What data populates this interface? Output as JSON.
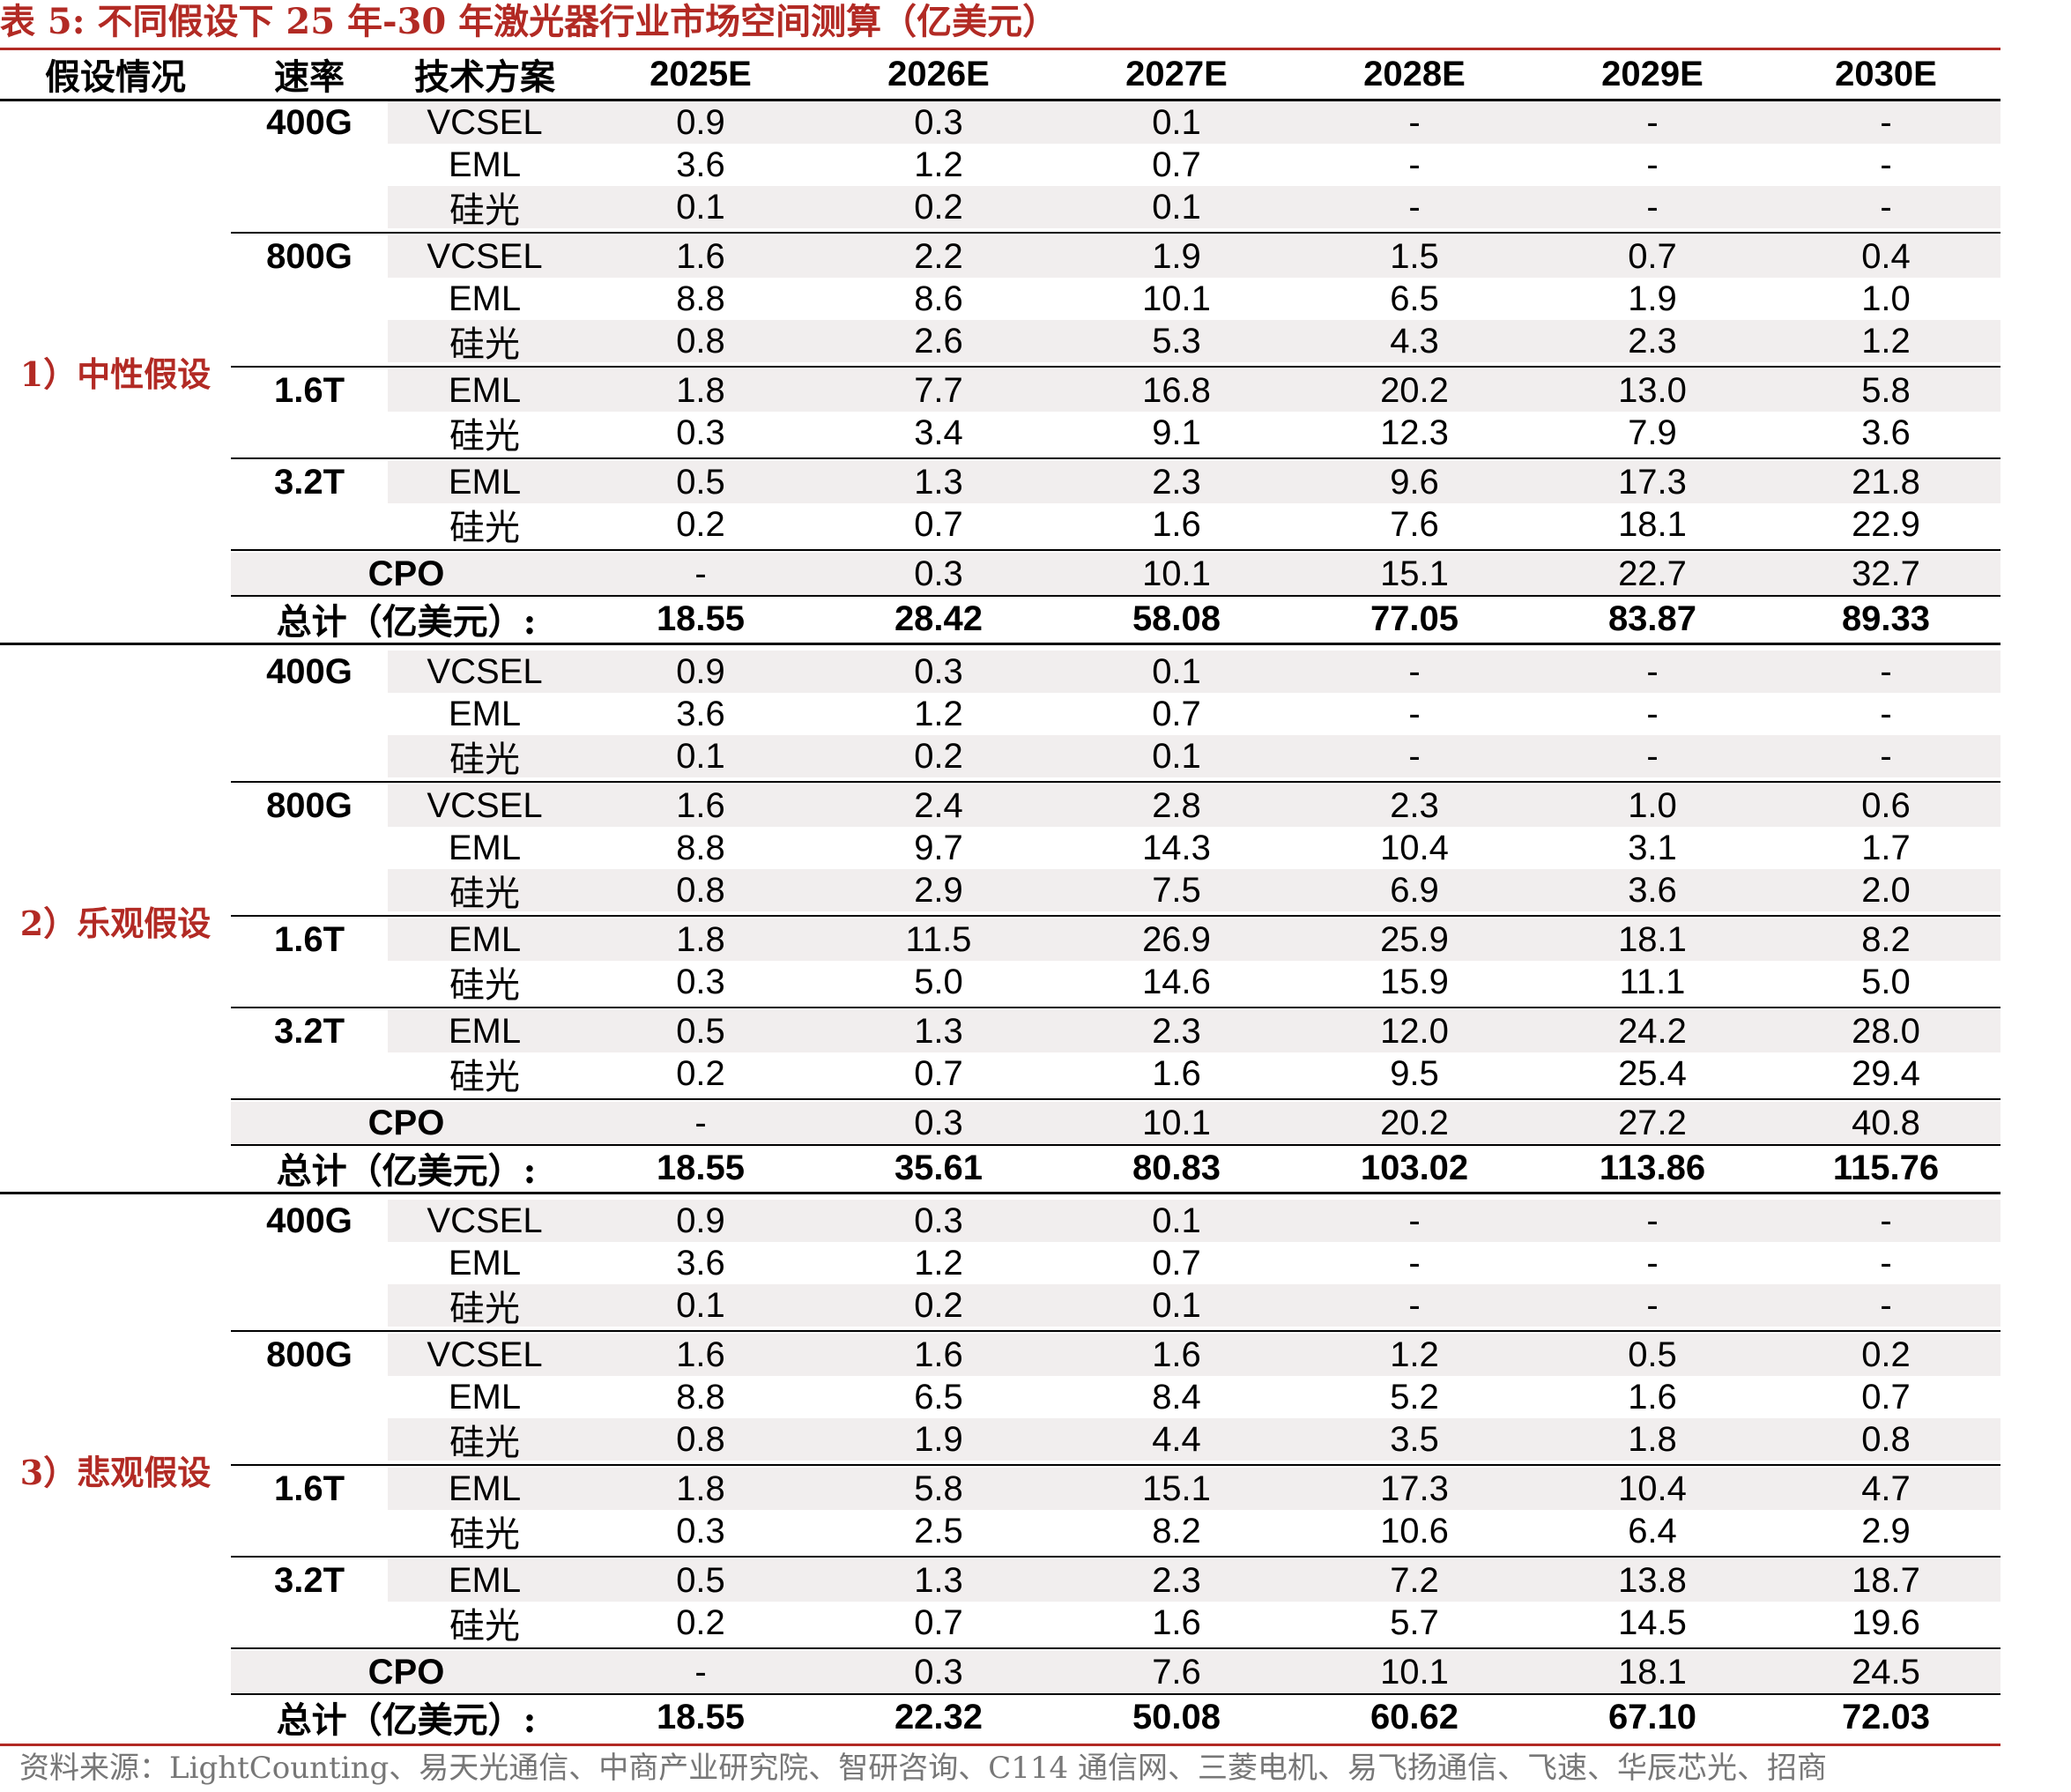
{
  "caption": "表 5:  不同假设下 25 年-30 年激光器行业市场空间测算（亿美元）",
  "headers": [
    "假设情况",
    "速率",
    "技术方案",
    "2025E",
    "2026E",
    "2027E",
    "2028E",
    "2029E",
    "2030E"
  ],
  "total_label": "总计（亿美元）:",
  "scenarios": [
    {
      "label": "1）中性假设",
      "groups": [
        {
          "speed": "400G",
          "rows": [
            {
              "tech": "VCSEL",
              "values": [
                "0.9",
                "0.3",
                "0.1",
                "-",
                "-",
                "-"
              ]
            },
            {
              "tech": "EML",
              "values": [
                "3.6",
                "1.2",
                "0.7",
                "-",
                "-",
                "-"
              ]
            },
            {
              "tech": "硅光",
              "values": [
                "0.1",
                "0.2",
                "0.1",
                "-",
                "-",
                "-"
              ]
            }
          ]
        },
        {
          "speed": "800G",
          "rows": [
            {
              "tech": "VCSEL",
              "values": [
                "1.6",
                "2.2",
                "1.9",
                "1.5",
                "0.7",
                "0.4"
              ]
            },
            {
              "tech": "EML",
              "values": [
                "8.8",
                "8.6",
                "10.1",
                "6.5",
                "1.9",
                "1.0"
              ]
            },
            {
              "tech": "硅光",
              "values": [
                "0.8",
                "2.6",
                "5.3",
                "4.3",
                "2.3",
                "1.2"
              ]
            }
          ]
        },
        {
          "speed": "1.6T",
          "rows": [
            {
              "tech": "EML",
              "values": [
                "1.8",
                "7.7",
                "16.8",
                "20.2",
                "13.0",
                "5.8"
              ]
            },
            {
              "tech": "硅光",
              "values": [
                "0.3",
                "3.4",
                "9.1",
                "12.3",
                "7.9",
                "3.6"
              ]
            }
          ]
        },
        {
          "speed": "3.2T",
          "rows": [
            {
              "tech": "EML",
              "values": [
                "0.5",
                "1.3",
                "2.3",
                "9.6",
                "17.3",
                "21.8"
              ]
            },
            {
              "tech": "硅光",
              "values": [
                "0.2",
                "0.7",
                "1.6",
                "7.6",
                "18.1",
                "22.9"
              ]
            }
          ]
        }
      ],
      "cpo": {
        "label": "CPO",
        "values": [
          "-",
          "0.3",
          "10.1",
          "15.1",
          "22.7",
          "32.7"
        ]
      },
      "totals": [
        "18.55",
        "28.42",
        "58.08",
        "77.05",
        "83.87",
        "89.33"
      ]
    },
    {
      "label": "2）乐观假设",
      "groups": [
        {
          "speed": "400G",
          "rows": [
            {
              "tech": "VCSEL",
              "values": [
                "0.9",
                "0.3",
                "0.1",
                "-",
                "-",
                "-"
              ]
            },
            {
              "tech": "EML",
              "values": [
                "3.6",
                "1.2",
                "0.7",
                "-",
                "-",
                "-"
              ]
            },
            {
              "tech": "硅光",
              "values": [
                "0.1",
                "0.2",
                "0.1",
                "-",
                "-",
                "-"
              ]
            }
          ]
        },
        {
          "speed": "800G",
          "rows": [
            {
              "tech": "VCSEL",
              "values": [
                "1.6",
                "2.4",
                "2.8",
                "2.3",
                "1.0",
                "0.6"
              ]
            },
            {
              "tech": "EML",
              "values": [
                "8.8",
                "9.7",
                "14.3",
                "10.4",
                "3.1",
                "1.7"
              ]
            },
            {
              "tech": "硅光",
              "values": [
                "0.8",
                "2.9",
                "7.5",
                "6.9",
                "3.6",
                "2.0"
              ]
            }
          ]
        },
        {
          "speed": "1.6T",
          "rows": [
            {
              "tech": "EML",
              "values": [
                "1.8",
                "11.5",
                "26.9",
                "25.9",
                "18.1",
                "8.2"
              ]
            },
            {
              "tech": "硅光",
              "values": [
                "0.3",
                "5.0",
                "14.6",
                "15.9",
                "11.1",
                "5.0"
              ]
            }
          ]
        },
        {
          "speed": "3.2T",
          "rows": [
            {
              "tech": "EML",
              "values": [
                "0.5",
                "1.3",
                "2.3",
                "12.0",
                "24.2",
                "28.0"
              ]
            },
            {
              "tech": "硅光",
              "values": [
                "0.2",
                "0.7",
                "1.6",
                "9.5",
                "25.4",
                "29.4"
              ]
            }
          ]
        }
      ],
      "cpo": {
        "label": "CPO",
        "values": [
          "-",
          "0.3",
          "10.1",
          "20.2",
          "27.2",
          "40.8"
        ]
      },
      "totals": [
        "18.55",
        "35.61",
        "80.83",
        "103.02",
        "113.86",
        "115.76"
      ]
    },
    {
      "label": "3）悲观假设",
      "groups": [
        {
          "speed": "400G",
          "rows": [
            {
              "tech": "VCSEL",
              "values": [
                "0.9",
                "0.3",
                "0.1",
                "-",
                "-",
                "-"
              ]
            },
            {
              "tech": "EML",
              "values": [
                "3.6",
                "1.2",
                "0.7",
                "-",
                "-",
                "-"
              ]
            },
            {
              "tech": "硅光",
              "values": [
                "0.1",
                "0.2",
                "0.1",
                "-",
                "-",
                "-"
              ]
            }
          ]
        },
        {
          "speed": "800G",
          "rows": [
            {
              "tech": "VCSEL",
              "values": [
                "1.6",
                "1.6",
                "1.6",
                "1.2",
                "0.5",
                "0.2"
              ]
            },
            {
              "tech": "EML",
              "values": [
                "8.8",
                "6.5",
                "8.4",
                "5.2",
                "1.6",
                "0.7"
              ]
            },
            {
              "tech": "硅光",
              "values": [
                "0.8",
                "1.9",
                "4.4",
                "3.5",
                "1.8",
                "0.8"
              ]
            }
          ]
        },
        {
          "speed": "1.6T",
          "rows": [
            {
              "tech": "EML",
              "values": [
                "1.8",
                "5.8",
                "15.1",
                "17.3",
                "10.4",
                "4.7"
              ]
            },
            {
              "tech": "硅光",
              "values": [
                "0.3",
                "2.5",
                "8.2",
                "10.6",
                "6.4",
                "2.9"
              ]
            }
          ]
        },
        {
          "speed": "3.2T",
          "rows": [
            {
              "tech": "EML",
              "values": [
                "0.5",
                "1.3",
                "2.3",
                "7.2",
                "13.8",
                "18.7"
              ]
            },
            {
              "tech": "硅光",
              "values": [
                "0.2",
                "0.7",
                "1.6",
                "5.7",
                "14.5",
                "19.6"
              ]
            }
          ]
        }
      ],
      "cpo": {
        "label": "CPO",
        "values": [
          "-",
          "0.3",
          "7.6",
          "10.1",
          "18.1",
          "24.5"
        ]
      },
      "totals": [
        "18.55",
        "22.32",
        "50.08",
        "60.62",
        "67.10",
        "72.03"
      ]
    }
  ],
  "footer": "资料来源：LightCounting、易天光通信、中商产业研究院、智研咨询、C114 通信网、三菱电机、易飞扬通信、飞速、华辰芯光、招商"
}
